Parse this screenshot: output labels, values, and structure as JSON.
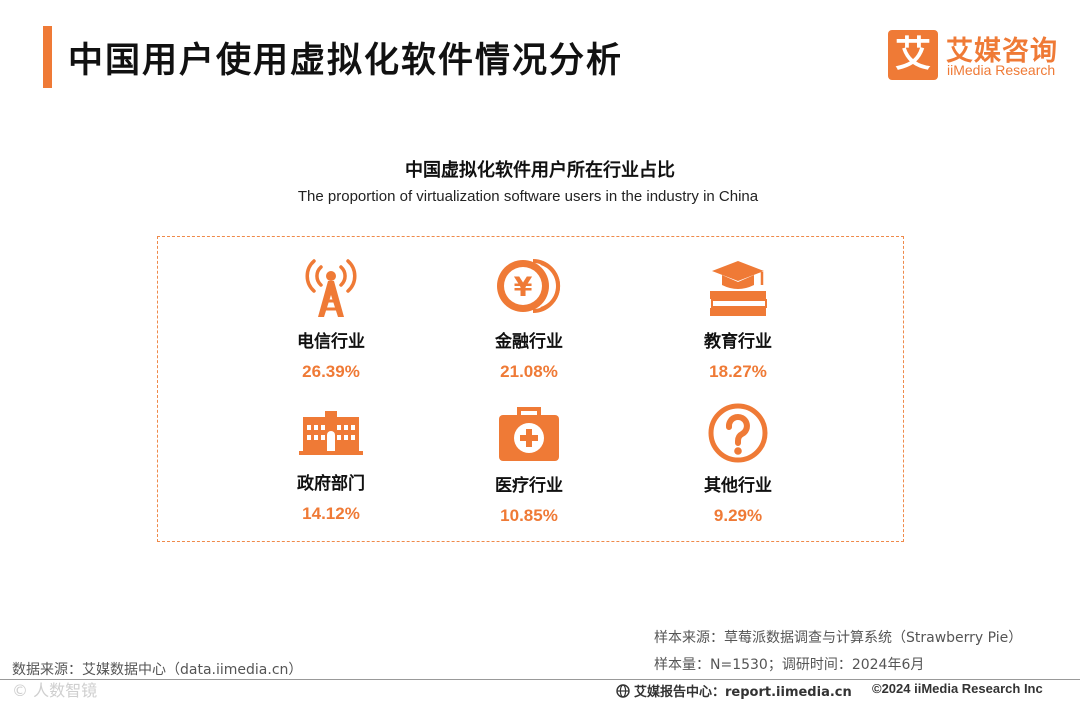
{
  "header": {
    "title": "中国用户使用虚拟化软件情况分析",
    "logo_mark": "艾",
    "logo_cn": "艾媒咨询",
    "logo_en": "iiMedia Research"
  },
  "chart": {
    "title_cn": "中国虚拟化软件用户所在行业占比",
    "title_en": "The proportion of virtualization software users in the industry in China"
  },
  "chart_data": {
    "type": "table",
    "title": "中国虚拟化软件用户所在行业占比",
    "subtitle": "The proportion of virtualization software users in the industry in China",
    "categories": [
      "电信行业",
      "金融行业",
      "教育行业",
      "政府部门",
      "医疗行业",
      "其他行业"
    ],
    "values": [
      26.39,
      21.08,
      18.27,
      14.12,
      10.85,
      9.29
    ],
    "value_labels": [
      "26.39%",
      "21.08%",
      "18.27%",
      "14.12%",
      "10.85%",
      "9.29%"
    ],
    "icons": [
      "radio-tower-icon",
      "coin-icon",
      "graduation-book-icon",
      "government-building-icon",
      "medical-kit-icon",
      "question-circle-icon"
    ]
  },
  "accent_color": "#ef7a36",
  "footer": {
    "source_left": "数据来源：艾媒数据中心（data.iimedia.cn）",
    "watermark": "©  人数智镜",
    "sample_source": "样本来源：草莓派数据调查与计算系统（Strawberry Pie）",
    "sample_size": "样本量：N=1530；调研时间：2024年6月",
    "report_center": "艾媒报告中心：report.iimedia.cn",
    "copyright": "©2024  iiMedia Research  Inc"
  }
}
